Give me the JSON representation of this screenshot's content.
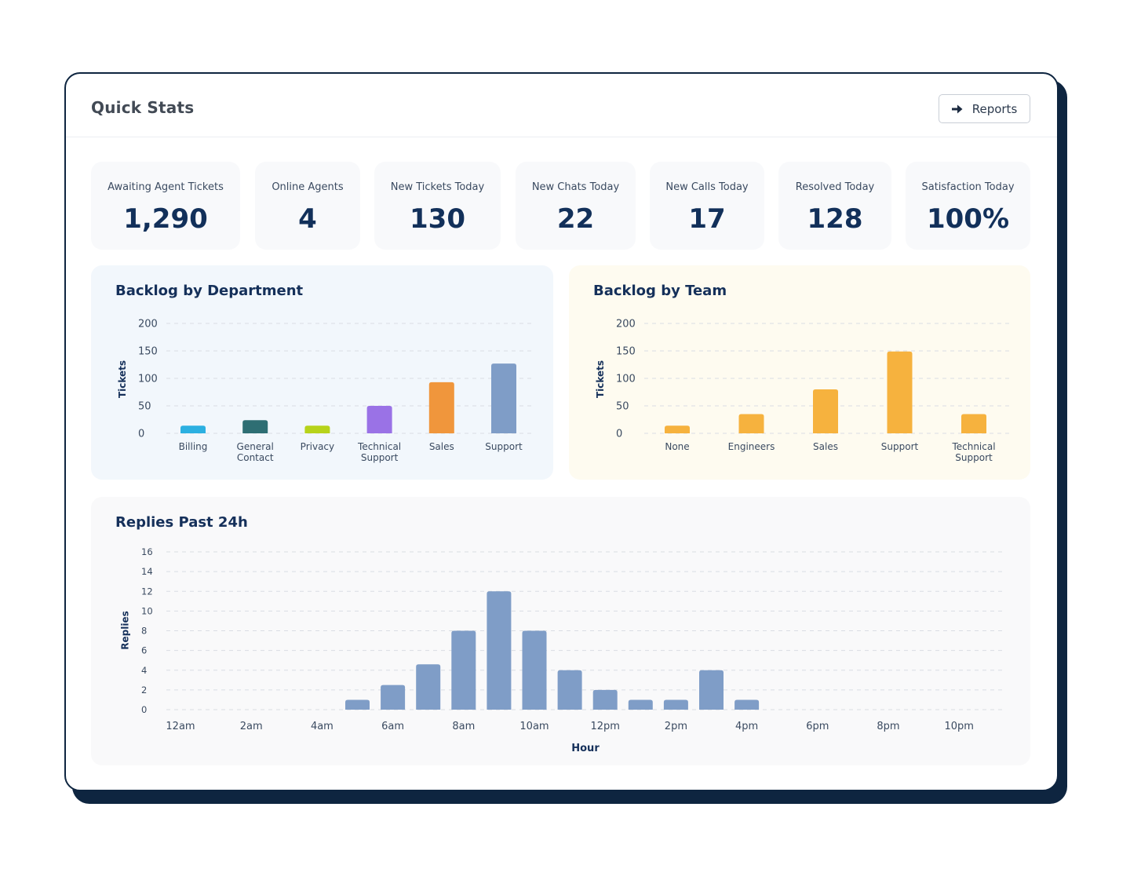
{
  "card": {
    "title": "Quick Stats"
  },
  "header": {
    "reports_label": "Reports",
    "reports_icon": "arrow-right-icon"
  },
  "stats": [
    {
      "label": "Awaiting Agent Tickets",
      "value": "1,290"
    },
    {
      "label": "Online Agents",
      "value": "4"
    },
    {
      "label": "New Tickets Today",
      "value": "130"
    },
    {
      "label": "New Chats Today",
      "value": "22"
    },
    {
      "label": "New Calls Today",
      "value": "17"
    },
    {
      "label": "Resolved Today",
      "value": "128"
    },
    {
      "label": "Satisfaction Today",
      "value": "100%"
    }
  ],
  "colors": {
    "navy": "#0e2540",
    "dept_panel_bg": "#f2f7fc",
    "team_panel_bg": "#fefbf0",
    "replies_panel_bg": "#f9f9fa",
    "reply_bar": "#7f9dc7",
    "team_bar": "#f6b23e"
  },
  "chart_data": [
    {
      "type": "bar",
      "title": "Backlog by Department",
      "ylabel": "Tickets",
      "xlabel": "",
      "ylim": [
        0,
        200
      ],
      "yticks": [
        0,
        50,
        100,
        150,
        200
      ],
      "categories": [
        [
          "Billing"
        ],
        [
          "General",
          "Contact"
        ],
        [
          "Privacy"
        ],
        [
          "Technical",
          "Support"
        ],
        [
          "Sales"
        ],
        [
          "Support"
        ]
      ],
      "values": [
        14,
        24,
        14,
        50,
        93,
        127
      ],
      "colors": [
        "#2cb0e1",
        "#2e6e73",
        "#b7d31a",
        "#9a72e6",
        "#f0963c",
        "#7f9dc7"
      ]
    },
    {
      "type": "bar",
      "title": "Backlog by Team",
      "ylabel": "Tickets",
      "xlabel": "",
      "ylim": [
        0,
        200
      ],
      "yticks": [
        0,
        50,
        100,
        150,
        200
      ],
      "categories": [
        [
          "None"
        ],
        [
          "Engineers"
        ],
        [
          "Sales"
        ],
        [
          "Support"
        ],
        [
          "Technical",
          "Support"
        ]
      ],
      "values": [
        14,
        35,
        80,
        149,
        35
      ],
      "colors": [
        "#f6b23e",
        "#f6b23e",
        "#f6b23e",
        "#f6b23e",
        "#f6b23e"
      ]
    },
    {
      "type": "bar",
      "title": "Replies Past 24h",
      "ylabel": "Replies",
      "xlabel": "Hour",
      "ylim": [
        0,
        16
      ],
      "yticks": [
        0,
        2,
        4,
        6,
        8,
        10,
        12,
        14,
        16
      ],
      "x_tick_labels": [
        "12am",
        "2am",
        "4am",
        "6am",
        "8am",
        "10am",
        "12pm",
        "2pm",
        "4pm",
        "6pm",
        "8pm",
        "10pm"
      ],
      "hours": [
        0,
        1,
        2,
        3,
        4,
        5,
        6,
        7,
        8,
        9,
        10,
        11,
        12,
        13,
        14,
        15,
        16,
        17,
        18,
        19,
        20,
        21,
        22,
        23
      ],
      "values": [
        0,
        0,
        0,
        0,
        0,
        1,
        2.5,
        4.6,
        8,
        12,
        8,
        4,
        2,
        1,
        1,
        4,
        1,
        0,
        0,
        0,
        0,
        0,
        0,
        0
      ]
    }
  ]
}
